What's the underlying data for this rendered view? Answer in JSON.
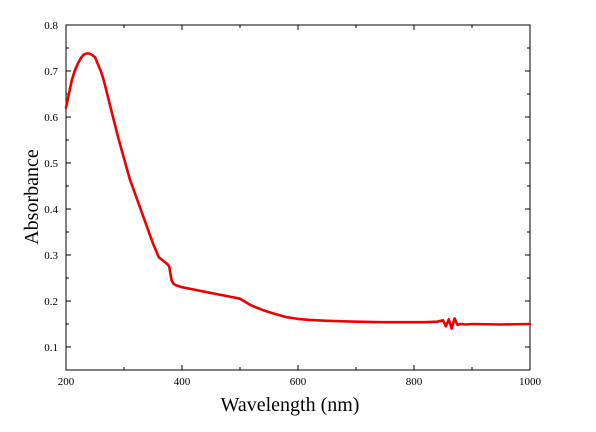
{
  "chart_data": {
    "type": "line",
    "title": "",
    "xlabel": "Wavelength (nm)",
    "ylabel": "Absorbance",
    "xlim": [
      200,
      1000
    ],
    "ylim": [
      0.05,
      0.8
    ],
    "x_ticks": [
      200,
      400,
      600,
      800,
      1000
    ],
    "y_ticks": [
      0.1,
      0.2,
      0.3,
      0.4,
      0.5,
      0.6,
      0.7,
      0.8
    ],
    "x_tick_labels": [
      "200",
      "400",
      "600",
      "800",
      "1000"
    ],
    "y_tick_labels": [
      "0.1",
      "0.2",
      "0.3",
      "0.4",
      "0.5",
      "0.6",
      "0.7",
      "0.8"
    ],
    "grid": false,
    "legend": "none",
    "series": [
      {
        "color": "#ee0000",
        "x": [
          200,
          205,
          210,
          215,
          220,
          225,
          230,
          235,
          240,
          245,
          250,
          255,
          260,
          265,
          270,
          275,
          280,
          290,
          300,
          310,
          320,
          330,
          340,
          350,
          360,
          370,
          375,
          378,
          380,
          382,
          385,
          390,
          400,
          420,
          440,
          460,
          480,
          500,
          520,
          540,
          560,
          580,
          600,
          620,
          650,
          700,
          750,
          800,
          820,
          840,
          850,
          855,
          860,
          865,
          870,
          875,
          880,
          890,
          900,
          950,
          1000
        ],
        "y": [
          0.62,
          0.65,
          0.68,
          0.7,
          0.715,
          0.727,
          0.735,
          0.738,
          0.738,
          0.735,
          0.73,
          0.715,
          0.7,
          0.68,
          0.655,
          0.63,
          0.605,
          0.555,
          0.51,
          0.465,
          0.43,
          0.395,
          0.36,
          0.325,
          0.295,
          0.285,
          0.28,
          0.275,
          0.26,
          0.245,
          0.238,
          0.234,
          0.23,
          0.225,
          0.22,
          0.215,
          0.21,
          0.205,
          0.19,
          0.18,
          0.172,
          0.165,
          0.161,
          0.159,
          0.157,
          0.155,
          0.154,
          0.154,
          0.154,
          0.155,
          0.158,
          0.145,
          0.16,
          0.14,
          0.162,
          0.148,
          0.15,
          0.149,
          0.15,
          0.149,
          0.15
        ]
      }
    ]
  }
}
